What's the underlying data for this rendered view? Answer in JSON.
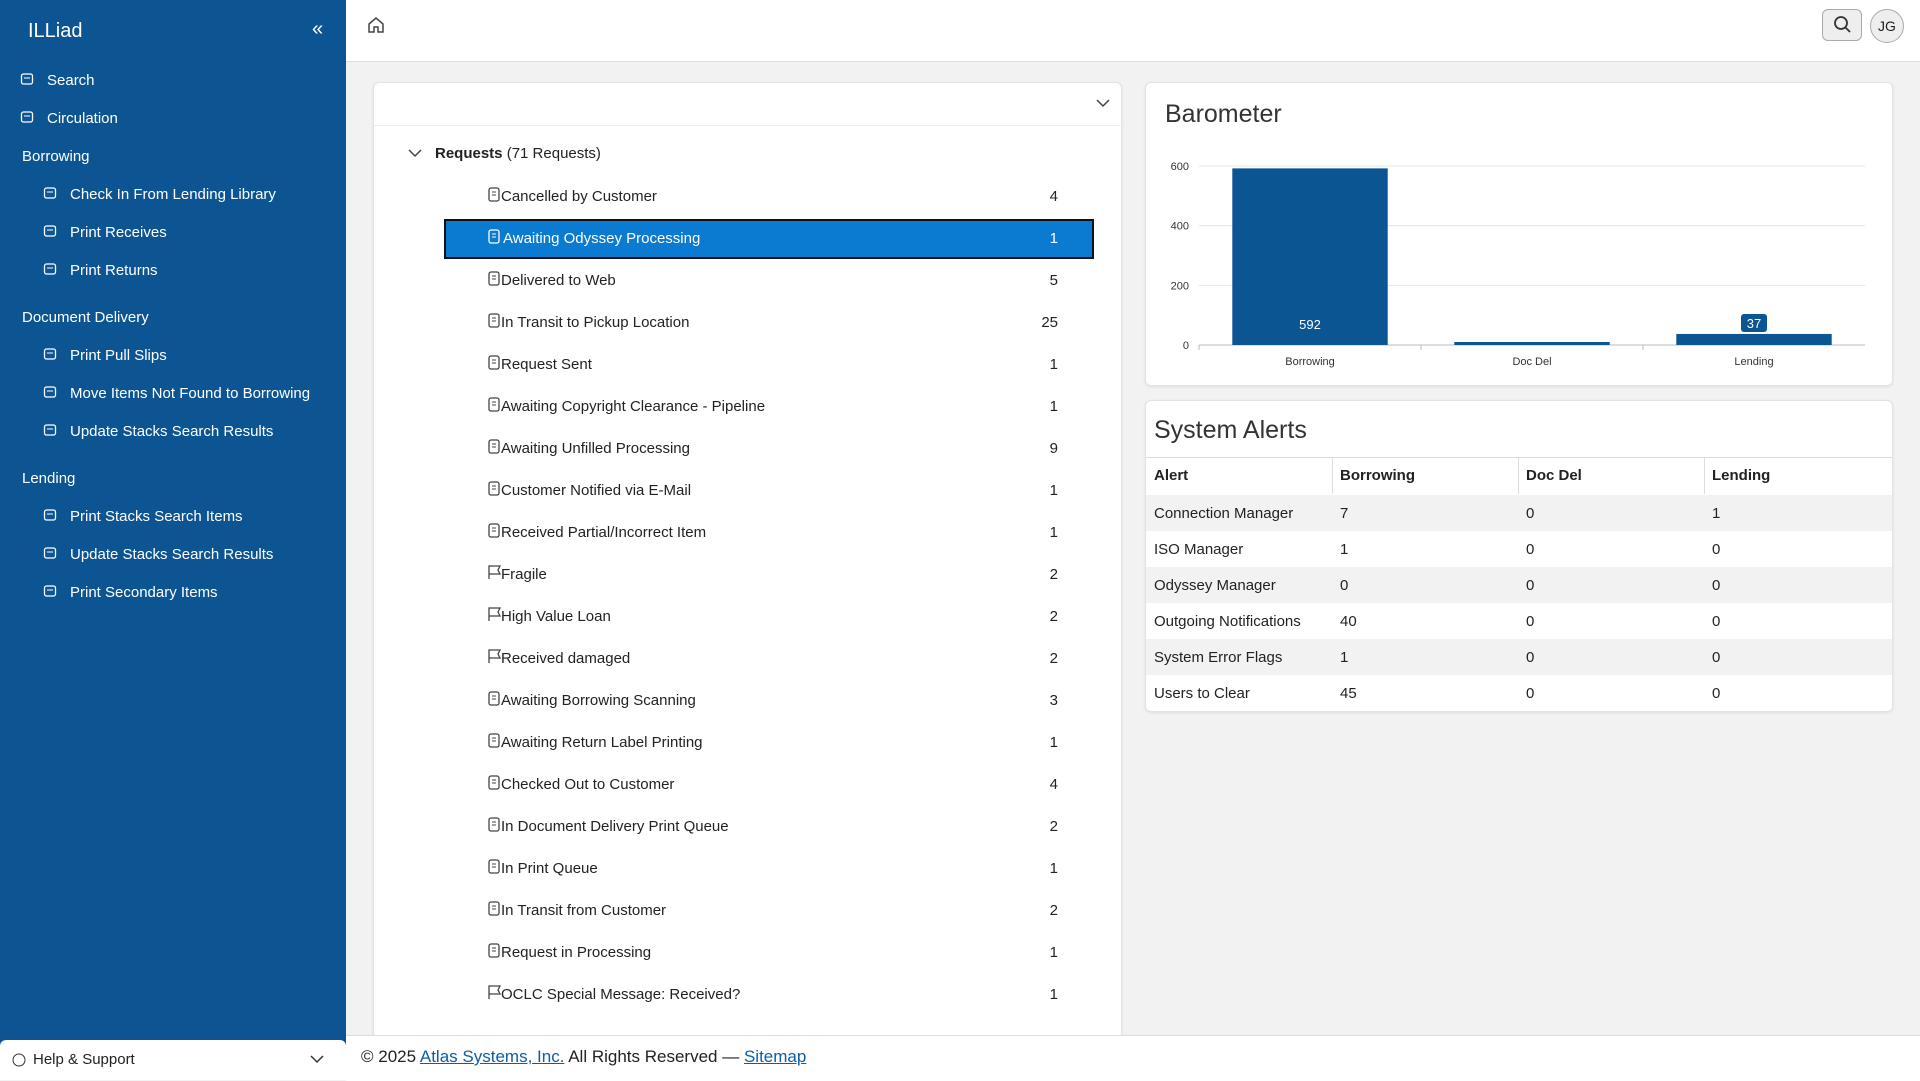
{
  "sidebar": {
    "title": "ILLiad",
    "top_links": [
      "Search",
      "Circulation"
    ],
    "sections": [
      {
        "title": "Borrowing",
        "items": [
          "Check In From Lending Library",
          "Print Receives",
          "Print Returns"
        ]
      },
      {
        "title": "Document Delivery",
        "items": [
          "Print Pull Slips",
          "Move Items Not Found to Borrowing",
          "Update Stacks Search Results"
        ]
      },
      {
        "title": "Lending",
        "items": [
          "Print Stacks Search Items",
          "Update Stacks Search Results",
          "Print Secondary Items"
        ]
      }
    ],
    "help": "Help & Support"
  },
  "topbar": {
    "user": "JG"
  },
  "requests": {
    "title": "Requests",
    "count": "(71 Requests)",
    "items": [
      {
        "label": "Cancelled by Customer",
        "count": 4,
        "icon": "doc"
      },
      {
        "label": "Awaiting Odyssey Processing",
        "count": 1,
        "icon": "doc",
        "selected": true
      },
      {
        "label": "Delivered to Web",
        "count": 5,
        "icon": "doc"
      },
      {
        "label": "In Transit to Pickup Location",
        "count": 25,
        "icon": "doc"
      },
      {
        "label": "Request Sent",
        "count": 1,
        "icon": "doc"
      },
      {
        "label": "Awaiting Copyright Clearance - Pipeline",
        "count": 1,
        "icon": "doc"
      },
      {
        "label": "Awaiting Unfilled Processing",
        "count": 9,
        "icon": "doc"
      },
      {
        "label": "Customer Notified via E-Mail",
        "count": 1,
        "icon": "doc"
      },
      {
        "label": "Received Partial/Incorrect Item",
        "count": 1,
        "icon": "doc"
      },
      {
        "label": "Fragile",
        "count": 2,
        "icon": "flag"
      },
      {
        "label": "High Value Loan",
        "count": 2,
        "icon": "flag"
      },
      {
        "label": "Received damaged",
        "count": 2,
        "icon": "flag"
      },
      {
        "label": "Awaiting Borrowing Scanning",
        "count": 3,
        "icon": "doc"
      },
      {
        "label": "Awaiting Return Label Printing",
        "count": 1,
        "icon": "doc"
      },
      {
        "label": "Checked Out to Customer",
        "count": 4,
        "icon": "doc"
      },
      {
        "label": "In Document Delivery Print Queue",
        "count": 2,
        "icon": "doc"
      },
      {
        "label": "In Print Queue",
        "count": 1,
        "icon": "doc"
      },
      {
        "label": "In Transit from Customer",
        "count": 2,
        "icon": "doc"
      },
      {
        "label": "Request in Processing",
        "count": 1,
        "icon": "doc"
      },
      {
        "label": "OCLC Special Message: Received?",
        "count": 1,
        "icon": "flag"
      }
    ]
  },
  "barometer": {
    "type": "bar",
    "title": "Barometer",
    "categories": [
      "Borrowing",
      "Doc Del",
      "Lending"
    ],
    "values": [
      592,
      10,
      37
    ],
    "color": "#0b5592",
    "ylim": [
      0,
      600
    ],
    "yticks": [
      0,
      200,
      400,
      600
    ],
    "grid": true
  },
  "alerts": {
    "title": "System Alerts",
    "columns": [
      "Alert",
      "Borrowing",
      "Doc Del",
      "Lending"
    ],
    "rows": [
      [
        "Connection Manager",
        7,
        0,
        1
      ],
      [
        "ISO Manager",
        1,
        0,
        0
      ],
      [
        "Odyssey Manager",
        0,
        0,
        0
      ],
      [
        "Outgoing Notifications",
        40,
        0,
        0
      ],
      [
        "System Error Flags",
        1,
        0,
        0
      ],
      [
        "Users to Clear",
        45,
        0,
        0
      ]
    ]
  },
  "footer": {
    "copyright": "© 2025",
    "company": "Atlas Systems, Inc.",
    "rights": "All Rights Reserved —",
    "sitemap": "Sitemap"
  }
}
